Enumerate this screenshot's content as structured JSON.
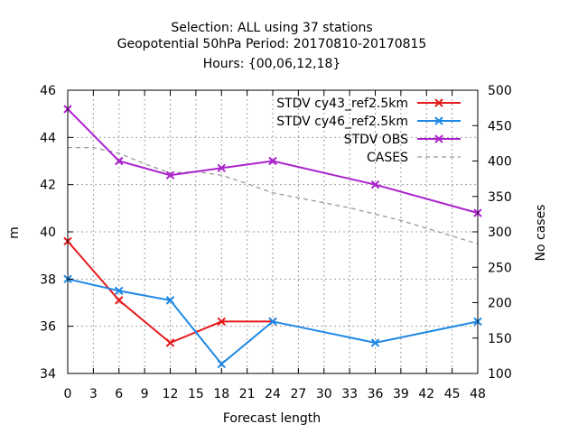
{
  "chart_data": {
    "type": "line",
    "title_lines": [
      "Selection: ALL using    37 stations",
      "Geopotential 50hPa   Period: 20170810-20170815",
      "Hours: {00,06,12,18}"
    ],
    "xlabel": "Forecast length",
    "ylabel": "m",
    "y2label": "No cases",
    "xlim": [
      0,
      48
    ],
    "ylim": [
      34,
      46
    ],
    "y2lim": [
      100,
      500
    ],
    "x_ticks": [
      0,
      3,
      6,
      9,
      12,
      15,
      18,
      21,
      24,
      27,
      30,
      33,
      36,
      39,
      42,
      45,
      48
    ],
    "y_ticks": [
      34,
      36,
      38,
      40,
      42,
      44,
      46
    ],
    "y2_ticks": [
      100,
      150,
      200,
      250,
      300,
      350,
      400,
      450,
      500
    ],
    "grid": true,
    "legend_position": "top-right",
    "series": [
      {
        "name": "STDV cy43_ref2.5km",
        "color": "#e41a1c",
        "marker": "x",
        "axis": "y",
        "x": [
          0,
          6,
          12,
          18,
          24
        ],
        "values": [
          39.6,
          37.1,
          35.3,
          36.2,
          36.2
        ]
      },
      {
        "name": "STDV cy46_ref2.5km",
        "color": "#1e88e5",
        "marker": "x",
        "axis": "y",
        "x": [
          0,
          6,
          12,
          18,
          24,
          36,
          48
        ],
        "values": [
          38.0,
          37.5,
          37.1,
          34.4,
          36.2,
          35.3,
          36.2
        ]
      },
      {
        "name": "STDV OBS",
        "color": "#aa22cc",
        "marker": "x",
        "axis": "y",
        "x": [
          0,
          6,
          12,
          18,
          24,
          36,
          48
        ],
        "values": [
          45.2,
          43.0,
          42.4,
          42.7,
          43.0,
          42.0,
          40.8
        ]
      },
      {
        "name": "CASES",
        "color": "#999999",
        "marker": "none",
        "dashed": true,
        "axis": "y2",
        "x": [
          0,
          3,
          6,
          9,
          12,
          15,
          18,
          21,
          24,
          27,
          30,
          33,
          36,
          39,
          42,
          45,
          48
        ],
        "values": [
          419,
          419,
          411,
          396,
          383,
          385,
          380,
          368,
          355,
          348,
          341,
          334,
          325,
          316,
          305,
          294,
          283
        ]
      }
    ]
  }
}
